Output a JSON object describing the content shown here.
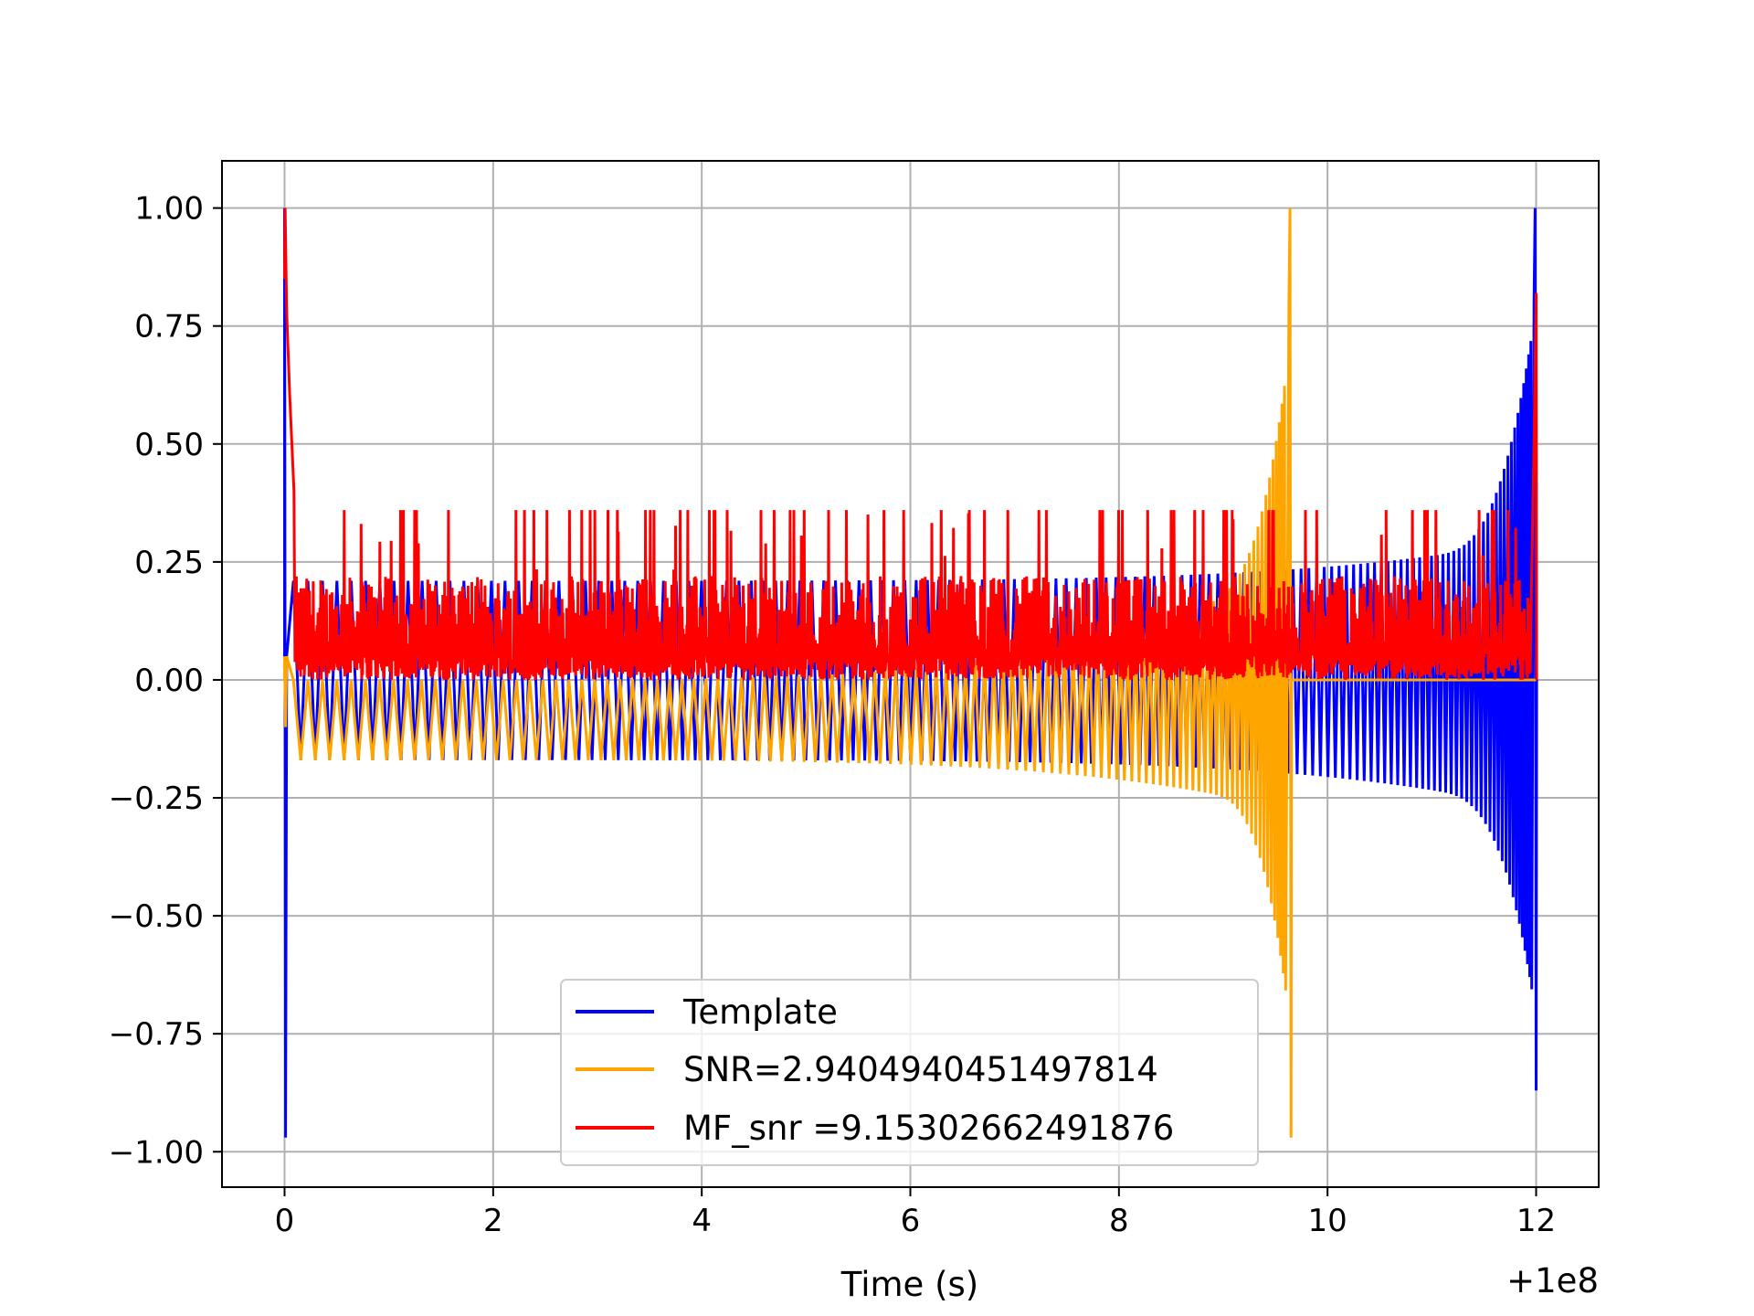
{
  "chart_data": {
    "type": "line",
    "title": "",
    "xlabel": "Time (s)",
    "ylabel": "",
    "x_offset_label": "+1e8",
    "xlim": [
      -0.6,
      12.6
    ],
    "ylim": [
      -1.075,
      1.1
    ],
    "grid": true,
    "legend_position": "lower center",
    "x_ticks": [
      0,
      2,
      4,
      6,
      8,
      10,
      12
    ],
    "x_tick_labels": [
      "0",
      "2",
      "4",
      "6",
      "8",
      "10",
      "12"
    ],
    "y_ticks": [
      1.0,
      0.75,
      0.5,
      0.25,
      0.0,
      -0.25,
      -0.5,
      -0.75,
      -1.0
    ],
    "y_tick_labels": [
      "1.00",
      "0.75",
      "0.50",
      "0.25",
      "0.00",
      "−0.25",
      "−0.50",
      "−0.75",
      "−1.00"
    ],
    "series": [
      {
        "name": "Template",
        "color": "#0000ff",
        "description_values": {
          "start": 0.0,
          "end": 12.0,
          "peak_start": [
            1.0,
            -0.97
          ],
          "peak_end": [
            1.0,
            -0.87
          ],
          "plateau_upper": [
            0.21,
            0.31
          ],
          "plateau_lower": [
            -0.17,
            -0.28
          ]
        }
      },
      {
        "name": "SNR=2.9404940451497814",
        "color": "#ffa500",
        "description_values": {
          "start": 0.0,
          "end": 9.65,
          "peak_end": [
            1.0,
            -0.97
          ],
          "plateau_upper": [
            0.0,
            0.25
          ],
          "plateau_lower": [
            -0.17,
            -0.28
          ]
        }
      },
      {
        "name": "MF_snr =9.15302662491876",
        "color": "#ff0000",
        "description_values": {
          "start": 0.0,
          "end": 12.0,
          "start_peak": 1.0,
          "end_peak": 0.82,
          "band": [
            0.0,
            0.25
          ],
          "spikes_max": 0.36
        }
      }
    ]
  }
}
